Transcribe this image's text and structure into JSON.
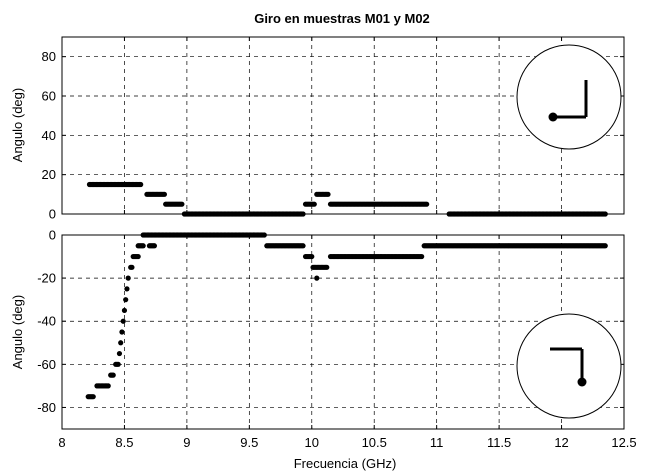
{
  "title": "Giro en muestras M01 y M02",
  "chart_data": [
    {
      "type": "scatter",
      "title": "Giro en muestras M01 y M02",
      "xlabel": "",
      "ylabel": "Angulo (deg)",
      "xlim": [
        8,
        12.5
      ],
      "ylim": [
        0,
        90
      ],
      "xticks": [
        "8",
        "8.5",
        "9",
        "9.5",
        "10",
        "10.5",
        "11",
        "11.5",
        "12",
        "12.5"
      ],
      "yticks": [
        0,
        20,
        40,
        60,
        80
      ],
      "grid": true,
      "marker_color": "#000000",
      "inset_icon": "circle-with-pivot-and-upward-bracket",
      "segments": [
        {
          "x_start": 8.22,
          "x_end": 8.63,
          "y": 15
        },
        {
          "x_start": 8.68,
          "x_end": 8.82,
          "y": 10
        },
        {
          "x_start": 8.83,
          "x_end": 8.96,
          "y": 5
        },
        {
          "x_start": 8.98,
          "x_end": 9.93,
          "y": 0
        },
        {
          "x_start": 9.95,
          "x_end": 10.02,
          "y": 5
        },
        {
          "x_start": 10.04,
          "x_end": 10.13,
          "y": 10
        },
        {
          "x_start": 10.15,
          "x_end": 10.92,
          "y": 5
        },
        {
          "x_start": 11.1,
          "x_end": 12.35,
          "y": 0
        }
      ]
    },
    {
      "type": "scatter",
      "title": "",
      "xlabel": "Frecuencia (GHz)",
      "ylabel": "Angulo (deg)",
      "xlim": [
        8,
        12.5
      ],
      "ylim": [
        -90,
        0
      ],
      "xticks": [
        "8",
        "8.5",
        "9",
        "9.5",
        "10",
        "10.5",
        "11",
        "11.5",
        "12",
        "12.5"
      ],
      "yticks": [
        0,
        -20,
        -40,
        -60,
        -80
      ],
      "grid": true,
      "marker_color": "#000000",
      "inset_icon": "circle-with-pivot-and-downward-bracket",
      "segments": [
        {
          "x_start": 8.21,
          "x_end": 8.25,
          "y": -75
        },
        {
          "x_start": 8.28,
          "x_end": 8.37,
          "y": -70
        },
        {
          "x_start": 8.39,
          "x_end": 8.41,
          "y": -65
        },
        {
          "x_start": 8.43,
          "x_end": 8.45,
          "y": -60
        },
        {
          "x_start": 8.46,
          "x_end": 8.46,
          "y": -55
        },
        {
          "x_start": 8.47,
          "x_end": 8.47,
          "y": -50
        },
        {
          "x_start": 8.48,
          "x_end": 8.48,
          "y": -45
        },
        {
          "x_start": 8.49,
          "x_end": 8.49,
          "y": -40
        },
        {
          "x_start": 8.5,
          "x_end": 8.5,
          "y": -35
        },
        {
          "x_start": 8.51,
          "x_end": 8.51,
          "y": -30
        },
        {
          "x_start": 8.52,
          "x_end": 8.52,
          "y": -25
        },
        {
          "x_start": 8.53,
          "x_end": 8.53,
          "y": -20
        },
        {
          "x_start": 8.55,
          "x_end": 8.56,
          "y": -15
        },
        {
          "x_start": 8.57,
          "x_end": 8.61,
          "y": -10
        },
        {
          "x_start": 8.61,
          "x_end": 8.65,
          "y": -5
        },
        {
          "x_start": 8.7,
          "x_end": 8.74,
          "y": -5
        },
        {
          "x_start": 8.65,
          "x_end": 9.62,
          "y": 0
        },
        {
          "x_start": 9.64,
          "x_end": 9.93,
          "y": -5
        },
        {
          "x_start": 9.95,
          "x_end": 10.0,
          "y": -10
        },
        {
          "x_start": 10.01,
          "x_end": 10.12,
          "y": -15
        },
        {
          "x_start": 10.04,
          "x_end": 10.04,
          "y": -20
        },
        {
          "x_start": 10.15,
          "x_end": 10.88,
          "y": -10
        },
        {
          "x_start": 10.9,
          "x_end": 12.35,
          "y": -5
        }
      ]
    }
  ]
}
